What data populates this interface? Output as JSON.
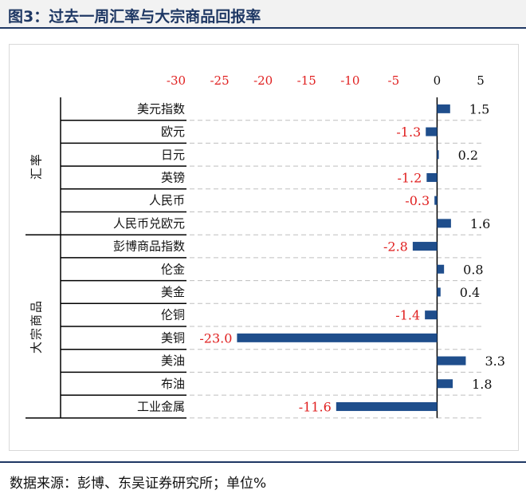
{
  "title": "图3：过去一周汇率与大宗商品回报率",
  "source": "数据来源：彭博、东吴证券研究所；单位%",
  "colors": {
    "bar": "#1f4e8c",
    "negative_label": "#e02020",
    "positive_label": "#111111",
    "header": "#1f3864",
    "grid": "#bfbfbf"
  },
  "chart_data": {
    "type": "bar",
    "orientation": "horizontal",
    "x_axis_position": "top",
    "xlim": [
      -30,
      5
    ],
    "xticks": [
      -30,
      -25,
      -20,
      -15,
      -10,
      -5,
      0,
      5
    ],
    "xlabel": "",
    "ylabel": "",
    "grid": true,
    "groups": [
      {
        "name": "汇率",
        "start": 0,
        "end": 5
      },
      {
        "name": "大宗商品",
        "start": 6,
        "end": 13
      }
    ],
    "categories": [
      "美元指数",
      "欧元",
      "日元",
      "英镑",
      "人民币",
      "人民币兑欧元",
      "彭博商品指数",
      "伦金",
      "美金",
      "伦铜",
      "美铜",
      "美油",
      "布油",
      "工业金属"
    ],
    "values": [
      1.5,
      -1.3,
      0.2,
      -1.2,
      -0.3,
      1.6,
      -2.8,
      0.8,
      0.4,
      -1.4,
      -23.0,
      3.3,
      1.8,
      -11.6
    ],
    "data_labels": [
      "1.5",
      "-1.3",
      "0.2",
      "-1.2",
      "-0.3",
      "1.6",
      "-2.8",
      "0.8",
      "0.4",
      "-1.4",
      "-23.0",
      "3.3",
      "1.8",
      "-11.6"
    ]
  }
}
